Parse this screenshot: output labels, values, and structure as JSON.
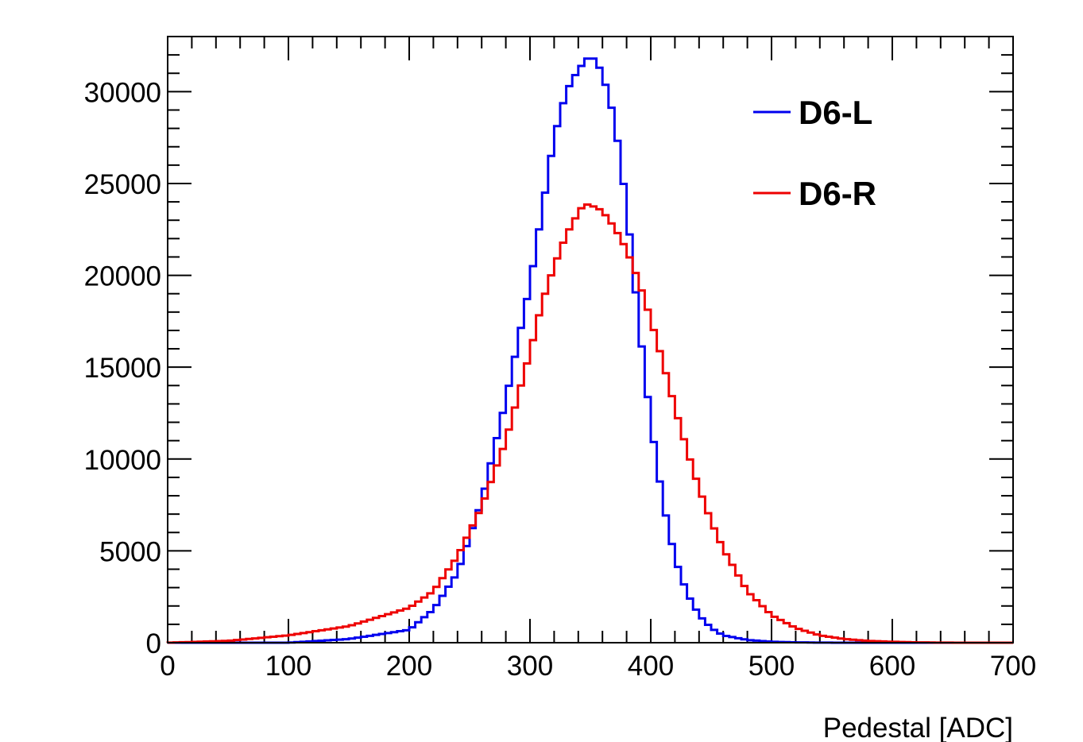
{
  "chart_data": {
    "type": "line",
    "step": true,
    "xlabel": "Pedestal [ADC]",
    "ylabel": "",
    "xlim": [
      0,
      700
    ],
    "ylim": [
      0,
      33000
    ],
    "x_ticks": [
      0,
      100,
      200,
      300,
      400,
      500,
      600,
      700
    ],
    "y_ticks": [
      0,
      5000,
      10000,
      15000,
      20000,
      25000,
      30000
    ],
    "x_tick_labels": [
      "0",
      "100",
      "200",
      "300",
      "400",
      "500",
      "600",
      "700"
    ],
    "y_tick_labels": [
      "0",
      "5000",
      "10000",
      "15000",
      "20000",
      "25000",
      "30000"
    ],
    "legend_position": "top-right",
    "x": [
      0,
      50,
      100,
      150,
      200,
      220,
      240,
      260,
      280,
      300,
      310,
      320,
      330,
      340,
      345,
      350,
      355,
      360,
      370,
      380,
      390,
      400,
      410,
      420,
      430,
      440,
      450,
      460,
      480,
      500,
      520,
      540,
      560,
      580,
      600,
      620,
      640,
      660,
      680,
      700
    ],
    "series": [
      {
        "name": "D6-L",
        "color": "#0000ee",
        "values": [
          0,
          0,
          0,
          200,
          700,
          1800,
          3800,
          7700,
          13200,
          19500,
          23500,
          27500,
          30000,
          31200,
          31600,
          32000,
          31600,
          31000,
          28500,
          23800,
          17500,
          12000,
          7700,
          4600,
          2700,
          1500,
          800,
          400,
          150,
          50,
          20,
          5,
          0,
          0,
          0,
          0,
          0,
          0,
          0,
          0
        ]
      },
      {
        "name": "D6-R",
        "color": "#ee0000",
        "values": [
          0,
          100,
          400,
          900,
          1900,
          2800,
          4700,
          7400,
          11000,
          15800,
          18500,
          20500,
          22200,
          23400,
          23900,
          23800,
          23700,
          23500,
          22600,
          21400,
          19700,
          17600,
          15300,
          12800,
          10500,
          8400,
          6600,
          5100,
          2800,
          1500,
          800,
          400,
          200,
          100,
          50,
          20,
          5,
          0,
          0,
          0
        ]
      }
    ]
  }
}
